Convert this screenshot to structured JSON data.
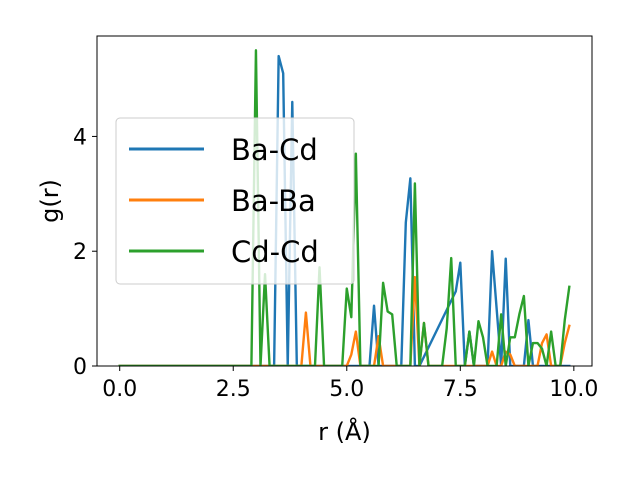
{
  "chart_data": {
    "type": "line",
    "title": "",
    "xlabel": "r (Å)",
    "ylabel": "g(r)",
    "xlim": [
      -0.5,
      10.4
    ],
    "ylim": [
      0,
      5.75
    ],
    "x_ticks": [
      0.0,
      2.5,
      5.0,
      7.5,
      10.0
    ],
    "x_tick_labels": [
      "0.0",
      "2.5",
      "5.0",
      "7.5",
      "10.0"
    ],
    "y_ticks": [
      0,
      2,
      4
    ],
    "y_tick_labels": [
      "0",
      "2",
      "4"
    ],
    "grid": false,
    "legend_position": "center-left",
    "series": [
      {
        "name": "Ba-Cd",
        "color": "#1f77b4",
        "x": [
          0.0,
          3.2,
          3.3,
          3.4,
          3.5,
          3.6,
          3.7,
          3.8,
          3.9,
          4.0,
          5.0,
          5.5,
          5.6,
          5.7,
          6.2,
          6.3,
          6.4,
          6.5,
          6.6,
          7.4,
          7.5,
          7.6,
          7.7,
          7.8,
          7.9,
          8.0,
          8.1,
          8.2,
          8.3,
          8.4,
          8.5,
          8.6,
          8.7,
          8.8,
          8.9,
          9.0,
          9.1,
          9.2,
          9.9
        ],
        "y": [
          0,
          0,
          0,
          0,
          5.4,
          5.1,
          0,
          4.6,
          0,
          0,
          0,
          0,
          1.05,
          0,
          0,
          2.5,
          3.27,
          0,
          0,
          1.3,
          1.8,
          0,
          0.6,
          0,
          0,
          0,
          0,
          2.0,
          1.0,
          0,
          1.87,
          0,
          0,
          0,
          0,
          0.8,
          0,
          0,
          0
        ]
      },
      {
        "name": "Ba-Ba",
        "color": "#ff7f0e",
        "x": [
          0.0,
          4.0,
          4.1,
          4.2,
          4.3,
          5.0,
          5.1,
          5.2,
          5.3,
          5.6,
          5.7,
          5.8,
          6.4,
          6.5,
          6.6,
          6.7,
          6.8,
          8.1,
          8.2,
          8.3,
          8.4,
          8.5,
          8.6,
          8.7,
          9.2,
          9.3,
          9.4,
          9.5,
          9.7,
          9.8,
          9.9
        ],
        "y": [
          0,
          0,
          0.93,
          0,
          0,
          0,
          0.2,
          0.6,
          0,
          0,
          0.52,
          0,
          0,
          1.55,
          0,
          0.75,
          0,
          0,
          0.25,
          0,
          0,
          0.25,
          0.2,
          0,
          0,
          0.4,
          0.55,
          0,
          0,
          0.4,
          0.7
        ]
      },
      {
        "name": "Cd-Cd",
        "color": "#2ca02c",
        "x": [
          0.0,
          2.9,
          3.0,
          3.1,
          3.2,
          3.3,
          3.4,
          3.5,
          4.3,
          4.4,
          4.5,
          4.9,
          5.0,
          5.1,
          5.2,
          5.3,
          5.7,
          5.8,
          5.9,
          6.0,
          6.1,
          6.2,
          6.4,
          6.5,
          6.6,
          6.7,
          6.8,
          7.1,
          7.2,
          7.3,
          7.4,
          7.5,
          7.6,
          7.7,
          7.8,
          7.9,
          8.0,
          8.1,
          8.2,
          8.3,
          8.4,
          8.5,
          8.6,
          8.7,
          8.8,
          8.9,
          9.0,
          9.1,
          9.2,
          9.3,
          9.4,
          9.5,
          9.6,
          9.7,
          9.8,
          9.9
        ],
        "y": [
          0,
          0,
          5.5,
          0,
          1.6,
          0,
          0,
          0,
          0,
          1.72,
          0,
          0,
          1.35,
          0.85,
          3.7,
          0,
          0,
          1.45,
          0.95,
          0.9,
          0,
          0,
          0,
          3.18,
          0,
          0.75,
          0,
          0,
          0.65,
          1.88,
          0,
          0,
          0,
          0.6,
          0,
          0.78,
          0.5,
          0,
          0,
          0,
          0.9,
          0,
          0.5,
          0.5,
          0.9,
          1.22,
          0,
          0.4,
          0.4,
          0.3,
          0,
          0.6,
          0,
          0,
          0.8,
          1.38
        ]
      }
    ]
  }
}
